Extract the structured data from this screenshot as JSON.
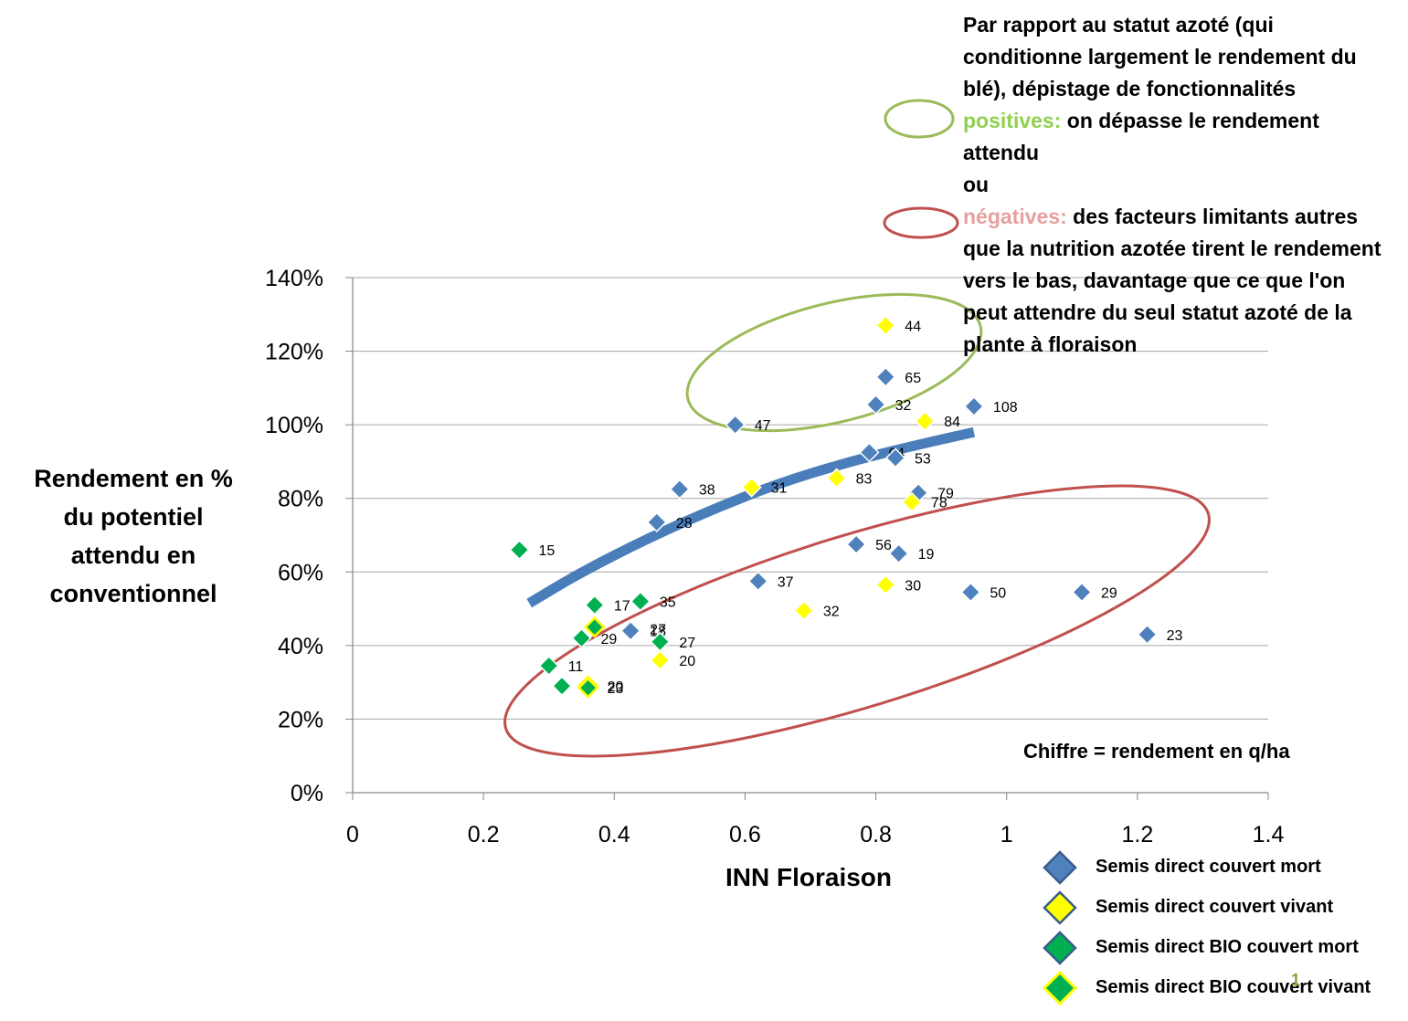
{
  "chart_data": {
    "type": "scatter",
    "xlabel": "INN Floraison",
    "ylabel": "Rendement en % du potentiel attendu en conventionnel",
    "ylabel_lines": [
      "Rendement en %",
      "du potentiel",
      "attendu en",
      "conventionnel"
    ],
    "xlim": [
      0,
      1.4
    ],
    "ylim": [
      0,
      1.4
    ],
    "x_ticks": [
      0,
      0.2,
      0.4,
      0.6,
      0.8,
      1,
      1.2,
      1.4
    ],
    "x_tick_labels": [
      "0",
      "0.2",
      "0.4",
      "0.6",
      "0.8",
      "1",
      "1.2",
      "1.4"
    ],
    "y_ticks": [
      0,
      0.2,
      0.4,
      0.6,
      0.8,
      1.0,
      1.2,
      1.4
    ],
    "y_tick_labels": [
      "0%",
      "20%",
      "40%",
      "60%",
      "80%",
      "100%",
      "120%",
      "140%"
    ],
    "grid": "horizontal",
    "legend_position": "bottom-right",
    "series": [
      {
        "name": "Semis direct  couvert mort",
        "color": "#4f81bd",
        "marker": "diamond",
        "points": [
          {
            "x": 0.585,
            "y": 1.0,
            "label": "47"
          },
          {
            "x": 0.815,
            "y": 1.13,
            "label": "65"
          },
          {
            "x": 0.8,
            "y": 1.055,
            "label": "32"
          },
          {
            "x": 0.95,
            "y": 1.05,
            "label": "108"
          },
          {
            "x": 0.79,
            "y": 0.925,
            "label": "64"
          },
          {
            "x": 0.83,
            "y": 0.91,
            "label": "53"
          },
          {
            "x": 0.5,
            "y": 0.825,
            "label": "38"
          },
          {
            "x": 0.865,
            "y": 0.815,
            "label": "79"
          },
          {
            "x": 0.465,
            "y": 0.735,
            "label": "28"
          },
          {
            "x": 0.77,
            "y": 0.675,
            "label": "56"
          },
          {
            "x": 0.835,
            "y": 0.65,
            "label": "19"
          },
          {
            "x": 0.62,
            "y": 0.575,
            "label": "37"
          },
          {
            "x": 0.945,
            "y": 0.545,
            "label": "50"
          },
          {
            "x": 1.115,
            "y": 0.545,
            "label": "29"
          },
          {
            "x": 1.215,
            "y": 0.43,
            "label": "23"
          },
          {
            "x": 0.425,
            "y": 0.445,
            "label": "27"
          },
          {
            "x": 0.425,
            "y": 0.44,
            "label": "18"
          }
        ]
      },
      {
        "name": "Semis direct couvert vivant",
        "color": "#ffff00",
        "marker": "diamond",
        "points": [
          {
            "x": 0.815,
            "y": 1.27,
            "label": "44"
          },
          {
            "x": 0.875,
            "y": 1.01,
            "label": "84"
          },
          {
            "x": 0.74,
            "y": 0.855,
            "label": "83"
          },
          {
            "x": 0.61,
            "y": 0.83,
            "label": "31"
          },
          {
            "x": 0.855,
            "y": 0.79,
            "label": "78"
          },
          {
            "x": 0.815,
            "y": 0.565,
            "label": "30"
          },
          {
            "x": 0.69,
            "y": 0.495,
            "label": "32"
          },
          {
            "x": 0.47,
            "y": 0.36,
            "label": "20"
          }
        ]
      },
      {
        "name": "Semis direct BIO couvert mort",
        "color": "#00b050",
        "marker": "diamond",
        "points": [
          {
            "x": 0.255,
            "y": 0.66,
            "label": "15"
          },
          {
            "x": 0.37,
            "y": 0.51,
            "label": "17"
          },
          {
            "x": 0.44,
            "y": 0.52,
            "label": "35"
          },
          {
            "x": 0.35,
            "y": 0.42,
            "label": "29"
          },
          {
            "x": 0.47,
            "y": 0.41,
            "label": "27"
          },
          {
            "x": 0.3,
            "y": 0.345,
            "label": "11"
          },
          {
            "x": 0.32,
            "y": 0.29,
            "label": ""
          }
        ]
      },
      {
        "name": "Semis direct BIO couvert vivant",
        "color": "#00b050",
        "marker": "diamond",
        "points": [
          {
            "x": 0.37,
            "y": 0.45,
            "label": ""
          },
          {
            "x": 0.36,
            "y": 0.29,
            "label": "20"
          },
          {
            "x": 0.36,
            "y": 0.285,
            "label": "23"
          }
        ]
      }
    ],
    "trend_curve": [
      {
        "x": 0.27,
        "y": 0.515
      },
      {
        "x": 0.35,
        "y": 0.6
      },
      {
        "x": 0.45,
        "y": 0.69
      },
      {
        "x": 0.55,
        "y": 0.77
      },
      {
        "x": 0.65,
        "y": 0.84
      },
      {
        "x": 0.75,
        "y": 0.895
      },
      {
        "x": 0.85,
        "y": 0.94
      },
      {
        "x": 0.95,
        "y": 0.98
      }
    ],
    "annotation": {
      "intro": "Par rapport au statut azoté (qui conditionne largement le rendement du blé), dépistage de fonctionnalités",
      "positive_label": "positives:",
      "positive_text": "on dépasse le rendement attendu",
      "or_text": "ou",
      "negative_label": "négatives:",
      "negative_text": "des facteurs limitants autres que la nutrition azotée tirent le rendement vers le bas, davantage que ce que l'on peut attendre du seul statut azoté de la plante à floraison"
    },
    "note": "Chiffre = rendement en q/ha",
    "page_number": "1",
    "colors": {
      "trend": "#4a7ebb",
      "positive_ellipse": "#9bbb59",
      "negative_ellipse": "#c0504d",
      "grid": "#a6a6a6"
    }
  }
}
